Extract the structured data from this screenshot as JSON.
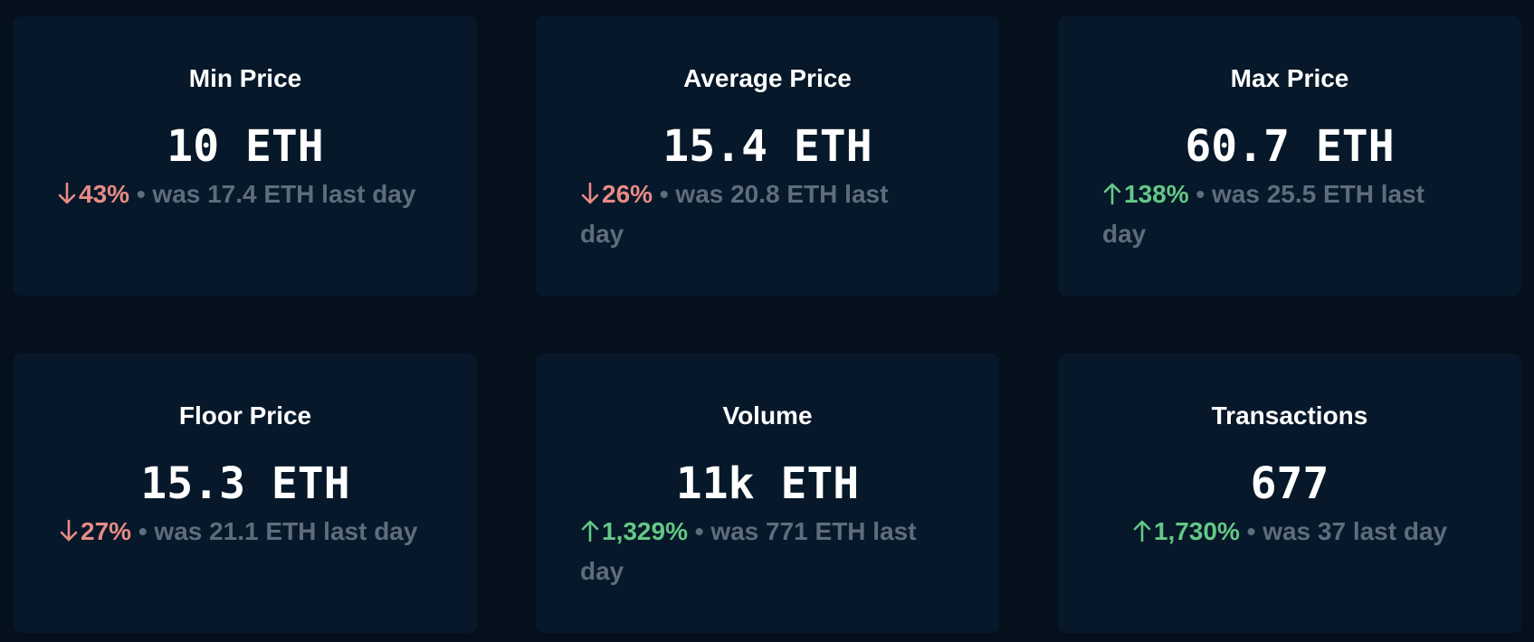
{
  "stats": [
    {
      "title": "Min Price",
      "value": "10 ETH",
      "direction": "down",
      "percent": "43%",
      "was": "• was 17.4 ETH last day"
    },
    {
      "title": "Average Price",
      "value": "15.4 ETH",
      "direction": "down",
      "percent": "26%",
      "was": "• was 20.8 ETH last day"
    },
    {
      "title": "Max Price",
      "value": "60.7 ETH",
      "direction": "up",
      "percent": "138%",
      "was": "• was 25.5 ETH last day"
    },
    {
      "title": "Floor Price",
      "value": "15.3 ETH",
      "direction": "down",
      "percent": "27%",
      "was": "• was 21.1 ETH last day"
    },
    {
      "title": "Volume",
      "value": "11k ETH",
      "direction": "up",
      "percent": "1,329%",
      "was": "• was 771 ETH last day"
    },
    {
      "title": "Transactions",
      "value": "677",
      "direction": "up",
      "percent": "1,730%",
      "was": "• was 37 last day"
    }
  ],
  "colors": {
    "background": "#04111d",
    "card": "#061829",
    "down": "#e88b86",
    "up": "#64c887",
    "muted": "#5e6d7d"
  },
  "icons": {
    "down": "arrow-down-icon",
    "up": "arrow-up-icon"
  }
}
